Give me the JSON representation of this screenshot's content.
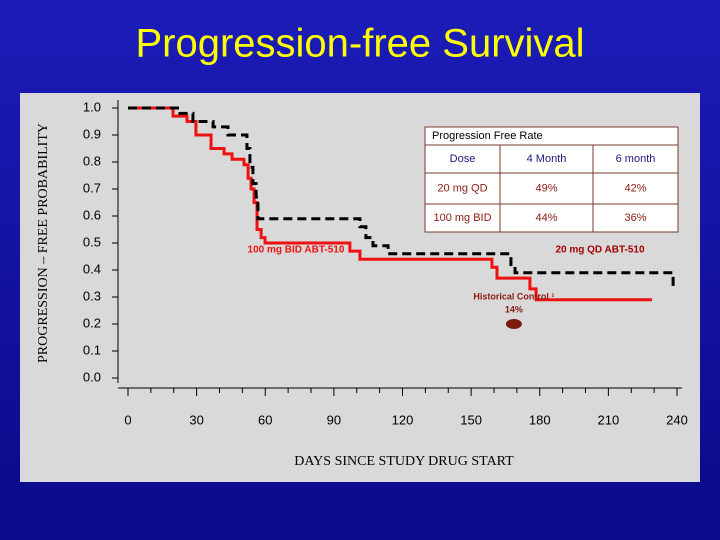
{
  "chart_data": {
    "type": "line",
    "title": "Progression-free Survival",
    "xlabel": "DAYS  SINCE  STUDY  DRUG  START",
    "ylabel": "PROGRESSION – FREE  PROBABILITY",
    "step": "post",
    "xlim": [
      0,
      240
    ],
    "ylim": [
      0,
      1
    ],
    "xticks": [
      0,
      30,
      60,
      90,
      120,
      150,
      180,
      210,
      240
    ],
    "xminorticks": [
      10,
      20,
      40,
      50,
      70,
      80,
      100,
      110,
      130,
      140,
      160,
      170,
      190,
      200,
      220,
      230
    ],
    "yticks": [
      {
        "value": 0,
        "label": "0.0"
      },
      0.1,
      0.2,
      0.3,
      0.4,
      0.5,
      0.6,
      0.7,
      0.8,
      0.9,
      {
        "value": 1,
        "label": "1.0"
      }
    ],
    "series": [
      {
        "name": "100 mg BID ABT-510",
        "color": "#ee1111",
        "label_color": "#ee1111",
        "dashed": false,
        "x": [
          0,
          19.7,
          25.8,
          29.7,
          36.3,
          42,
          45.5,
          50.7,
          52.5,
          53.8,
          55.1,
          56.4,
          58.2,
          59.9,
          97,
          101.4,
          159.1,
          161.3,
          175.7,
          178.4,
          229.1
        ],
        "values": [
          1.0,
          0.97,
          0.95,
          0.9,
          0.85,
          0.83,
          0.81,
          0.79,
          0.74,
          0.7,
          0.65,
          0.55,
          0.52,
          0.5,
          0.47,
          0.44,
          0.41,
          0.37,
          0.33,
          0.29,
          0.29
        ]
      },
      {
        "name": "20 mg QD ABT-510",
        "color": "#000000",
        "label_color": "#a00000",
        "dashed": true,
        "x": [
          0,
          22.7,
          28.4,
          37.2,
          43.7,
          52,
          53.3,
          54.6,
          56,
          56.8,
          101.4,
          104,
          107.1,
          113.7,
          167.4,
          169.2,
          238.3
        ],
        "values": [
          1.0,
          0.98,
          0.95,
          0.93,
          0.9,
          0.85,
          0.78,
          0.72,
          0.67,
          0.59,
          0.56,
          0.52,
          0.49,
          0.46,
          0.42,
          0.39,
          0.33
        ]
      }
    ],
    "annotations": [
      {
        "text": "Historical Control ¹",
        "subtext": "14%",
        "x": 168.7,
        "y": 0.2,
        "color": "#8b1a10"
      }
    ],
    "table": {
      "title": "Progression Free Rate",
      "header": [
        "Dose",
        "4 Month",
        "6 month"
      ],
      "rows": [
        [
          "20 mg QD",
          "49%",
          "42%"
        ],
        [
          "100 mg BID",
          "44%",
          "36%"
        ]
      ]
    }
  }
}
